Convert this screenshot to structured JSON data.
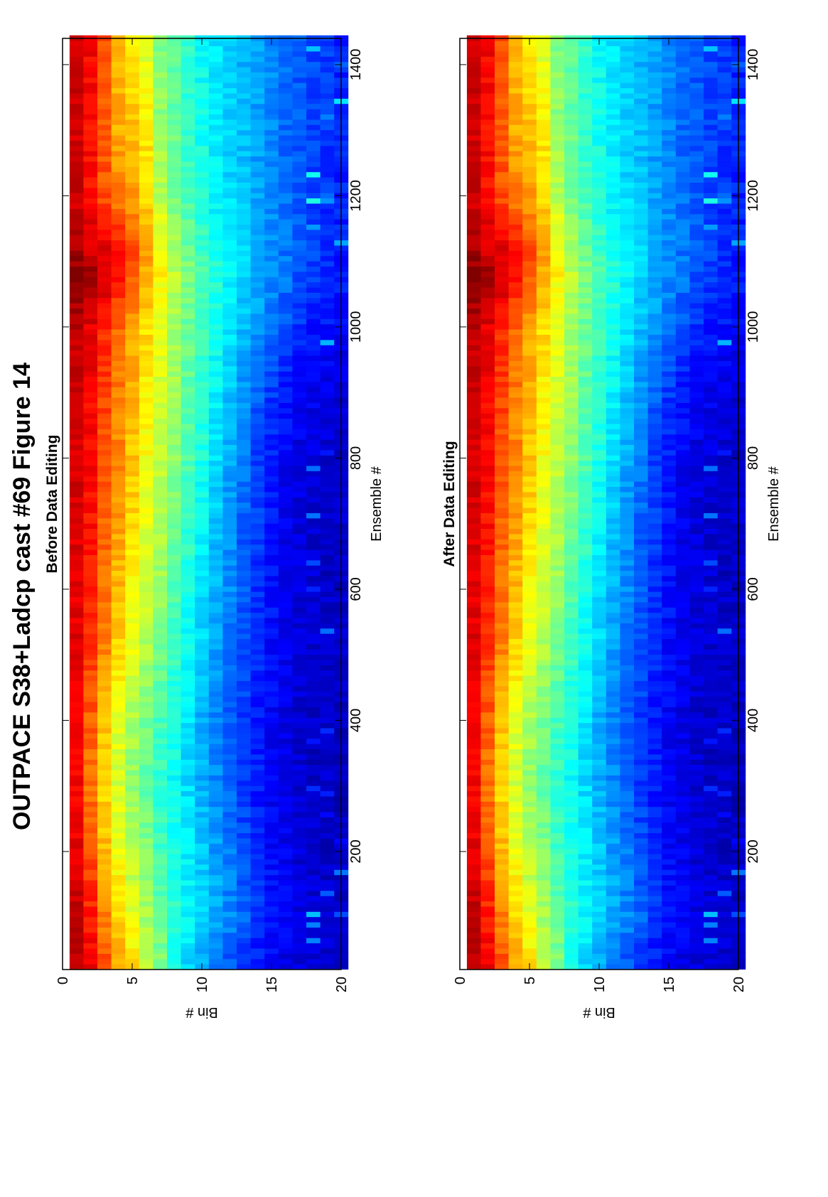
{
  "figure": {
    "suptitle": "OUTPACE S38+Ladcp cast #69  Figure 14",
    "rotated": "90deg counter-clockwise (page orientation: landscape figure on portrait page)"
  },
  "chart_data": [
    {
      "type": "heatmap",
      "title": "Before Data Editing",
      "xlabel": "Ensemble #",
      "ylabel": "Bin #",
      "xlim": [
        20,
        1440
      ],
      "ylim": [
        0,
        20
      ],
      "y_reversed": true,
      "xticks": [
        200,
        400,
        600,
        800,
        1000,
        1200,
        1400
      ],
      "yticks": [
        0,
        5,
        10,
        15,
        20
      ],
      "colormap": "jet",
      "value_range": [
        0,
        1
      ],
      "description_profile": {
        "bins": [
          1,
          2,
          3,
          4,
          5,
          6,
          7,
          8,
          9,
          10,
          11,
          12,
          13,
          14,
          15,
          16,
          17,
          18,
          19,
          20
        ],
        "ensembles": [
          20,
          100,
          200,
          300,
          400,
          500,
          600,
          700,
          800,
          900,
          1000,
          1080,
          1120,
          1200,
          1300,
          1440
        ],
        "relative_intensity": [
          [
            0.95,
            0.93,
            0.9,
            0.88,
            0.88,
            0.9,
            0.9,
            0.91,
            0.92,
            0.92,
            0.94,
            0.99,
            0.96,
            0.92,
            0.92,
            0.93
          ],
          [
            0.9,
            0.85,
            0.8,
            0.76,
            0.78,
            0.82,
            0.84,
            0.86,
            0.87,
            0.88,
            0.9,
            0.97,
            0.92,
            0.87,
            0.87,
            0.88
          ],
          [
            0.8,
            0.75,
            0.7,
            0.66,
            0.68,
            0.74,
            0.76,
            0.78,
            0.8,
            0.81,
            0.84,
            0.93,
            0.9,
            0.8,
            0.78,
            0.8
          ],
          [
            0.72,
            0.67,
            0.62,
            0.58,
            0.6,
            0.66,
            0.69,
            0.72,
            0.74,
            0.75,
            0.78,
            0.86,
            0.86,
            0.75,
            0.7,
            0.7
          ],
          [
            0.66,
            0.6,
            0.55,
            0.52,
            0.54,
            0.6,
            0.63,
            0.66,
            0.68,
            0.7,
            0.72,
            0.78,
            0.8,
            0.72,
            0.68,
            0.65
          ],
          [
            0.58,
            0.54,
            0.5,
            0.47,
            0.49,
            0.54,
            0.58,
            0.6,
            0.62,
            0.64,
            0.66,
            0.7,
            0.72,
            0.66,
            0.65,
            0.58
          ],
          [
            0.5,
            0.48,
            0.44,
            0.42,
            0.44,
            0.48,
            0.52,
            0.55,
            0.57,
            0.58,
            0.6,
            0.63,
            0.62,
            0.56,
            0.52,
            0.5
          ],
          [
            0.4,
            0.43,
            0.4,
            0.38,
            0.4,
            0.43,
            0.46,
            0.49,
            0.51,
            0.53,
            0.54,
            0.56,
            0.54,
            0.5,
            0.48,
            0.46
          ],
          [
            0.33,
            0.38,
            0.36,
            0.34,
            0.35,
            0.38,
            0.4,
            0.43,
            0.45,
            0.47,
            0.48,
            0.5,
            0.48,
            0.45,
            0.43,
            0.42
          ],
          [
            0.28,
            0.34,
            0.32,
            0.3,
            0.3,
            0.33,
            0.35,
            0.37,
            0.4,
            0.42,
            0.43,
            0.45,
            0.43,
            0.41,
            0.39,
            0.38
          ],
          [
            0.24,
            0.3,
            0.28,
            0.26,
            0.26,
            0.28,
            0.3,
            0.32,
            0.34,
            0.37,
            0.39,
            0.41,
            0.39,
            0.37,
            0.36,
            0.35
          ],
          [
            0.2,
            0.26,
            0.24,
            0.22,
            0.22,
            0.24,
            0.26,
            0.27,
            0.29,
            0.32,
            0.35,
            0.37,
            0.36,
            0.34,
            0.33,
            0.33
          ],
          [
            0.17,
            0.22,
            0.2,
            0.18,
            0.18,
            0.2,
            0.21,
            0.22,
            0.24,
            0.27,
            0.31,
            0.33,
            0.33,
            0.31,
            0.31,
            0.3
          ],
          [
            0.14,
            0.18,
            0.16,
            0.15,
            0.15,
            0.16,
            0.17,
            0.18,
            0.19,
            0.22,
            0.27,
            0.3,
            0.3,
            0.28,
            0.28,
            0.28
          ],
          [
            0.12,
            0.15,
            0.13,
            0.12,
            0.12,
            0.13,
            0.14,
            0.14,
            0.15,
            0.18,
            0.23,
            0.27,
            0.27,
            0.26,
            0.26,
            0.26
          ],
          [
            0.1,
            0.12,
            0.11,
            0.1,
            0.1,
            0.11,
            0.11,
            0.11,
            0.12,
            0.15,
            0.2,
            0.24,
            0.24,
            0.23,
            0.23,
            0.23
          ],
          [
            0.09,
            0.1,
            0.09,
            0.08,
            0.08,
            0.09,
            0.09,
            0.09,
            0.1,
            0.12,
            0.17,
            0.21,
            0.21,
            0.21,
            0.21,
            0.21
          ],
          [
            0.08,
            0.09,
            0.08,
            0.07,
            0.07,
            0.08,
            0.08,
            0.08,
            0.09,
            0.11,
            0.15,
            0.19,
            0.19,
            0.19,
            0.19,
            0.19
          ],
          [
            0.08,
            0.08,
            0.07,
            0.07,
            0.07,
            0.07,
            0.07,
            0.07,
            0.08,
            0.1,
            0.14,
            0.17,
            0.17,
            0.17,
            0.18,
            0.18
          ],
          [
            0.07,
            0.08,
            0.07,
            0.06,
            0.06,
            0.07,
            0.07,
            0.07,
            0.07,
            0.09,
            0.12,
            0.15,
            0.15,
            0.16,
            0.16,
            0.16
          ]
        ]
      },
      "grid": false
    },
    {
      "type": "heatmap",
      "title": "After Data Editing",
      "xlabel": "Ensemble #",
      "ylabel": "Bin #",
      "xlim": [
        20,
        1440
      ],
      "ylim": [
        0,
        20
      ],
      "y_reversed": true,
      "xticks": [
        200,
        400,
        600,
        800,
        1000,
        1200,
        1400
      ],
      "yticks": [
        0,
        5,
        10,
        15,
        20
      ],
      "colormap": "jet",
      "value_range": [
        0,
        1
      ],
      "same_profile_as_first": true,
      "grid": false
    }
  ]
}
